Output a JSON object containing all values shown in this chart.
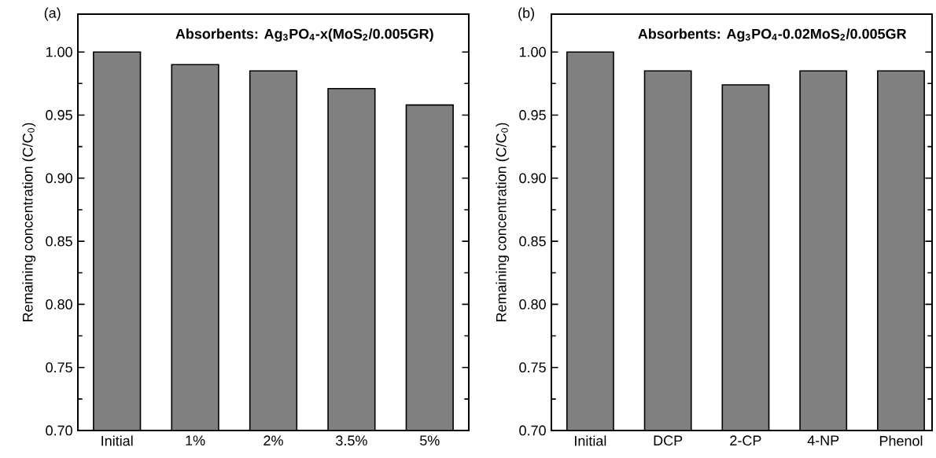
{
  "chart_data": [
    {
      "type": "bar",
      "title": "Absorbents:  Ag$_{3}$PO$_{4}$-x(MoS$_{2}$/0.005GR)",
      "ylabel": "Remaining concentration (C/C$_{0}$)",
      "annotations": [
        "(a)"
      ],
      "categories": [
        "Initial",
        "1%",
        "2%",
        "3.5%",
        "5%"
      ],
      "values": [
        1.0,
        0.99,
        0.985,
        0.971,
        0.958
      ],
      "color": "#808080",
      "ylim": [
        0.7,
        1.03
      ],
      "yticks": [
        {
          "value": 0.7,
          "label": "0.70"
        },
        0.75,
        {
          "value": 0.8,
          "label": "0.80"
        },
        0.85,
        {
          "value": 0.9,
          "label": "0.90"
        },
        0.95,
        {
          "value": 1.0,
          "label": "1.00"
        }
      ]
    },
    {
      "type": "bar",
      "title": "Absorbents:  Ag$_{3}$PO$_{4}$-0.02MoS$_{2}$/0.005GR",
      "ylabel": "Remaining concentration (C/C$_{0}$)",
      "annotations": [
        "(b)"
      ],
      "categories": [
        "Initial",
        "DCP",
        "2-CP",
        "4-NP",
        "Phenol"
      ],
      "values": [
        1.0,
        0.985,
        0.974,
        0.985,
        0.985
      ],
      "color": "#808080",
      "ylim": [
        0.7,
        1.03
      ],
      "yticks": [
        {
          "value": 0.7,
          "label": "0.70"
        },
        0.75,
        {
          "value": 0.8,
          "label": "0.80"
        },
        0.85,
        {
          "value": 0.9,
          "label": "0.90"
        },
        0.95,
        {
          "value": 1.0,
          "label": "1.00"
        }
      ]
    }
  ]
}
